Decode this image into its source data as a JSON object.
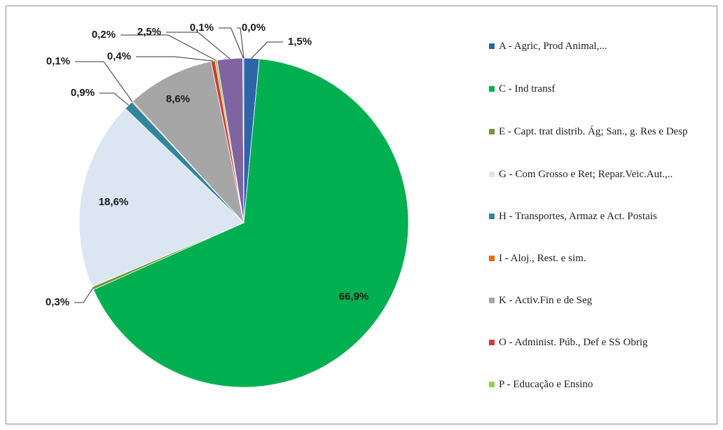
{
  "chart_data": {
    "type": "pie",
    "categories": [
      "A -  Agric, Prod Animal,...",
      "C - Ind transf",
      "E - Capt. trat distrib. Ág; San., g. Res e Desp",
      "G - Com Grosso e Ret; Repar.Veic.Aut.,..",
      "H - Transportes, Armaz e Act. Postais",
      "I  - Aloj., Rest. e sim.",
      "K - Activ.Fin e de Seg",
      "O - Administ. Púb., Def e SS Obrig",
      "P - Educação e Ensino",
      null,
      null,
      null
    ],
    "values": [
      1.5,
      66.9,
      0.3,
      18.6,
      0.9,
      0.1,
      8.6,
      0.4,
      0.2,
      2.5,
      0.1,
      0.0
    ],
    "value_labels": [
      "1,5%",
      "66,9%",
      "0,3%",
      "18,6%",
      "0,9%",
      "0,1%",
      "8,6%",
      "0,4%",
      "0,2%",
      "2,5%",
      "0,1%",
      "0,0%"
    ],
    "colors": [
      "#2e64a8",
      "#00b050",
      "#77933c",
      "#dce6f2",
      "#31859c",
      "#e46c0a",
      "#a6a6a6",
      "#d13b3b",
      "#92d050",
      "#8064a2",
      "#4bacc6",
      "#f79646"
    ]
  }
}
